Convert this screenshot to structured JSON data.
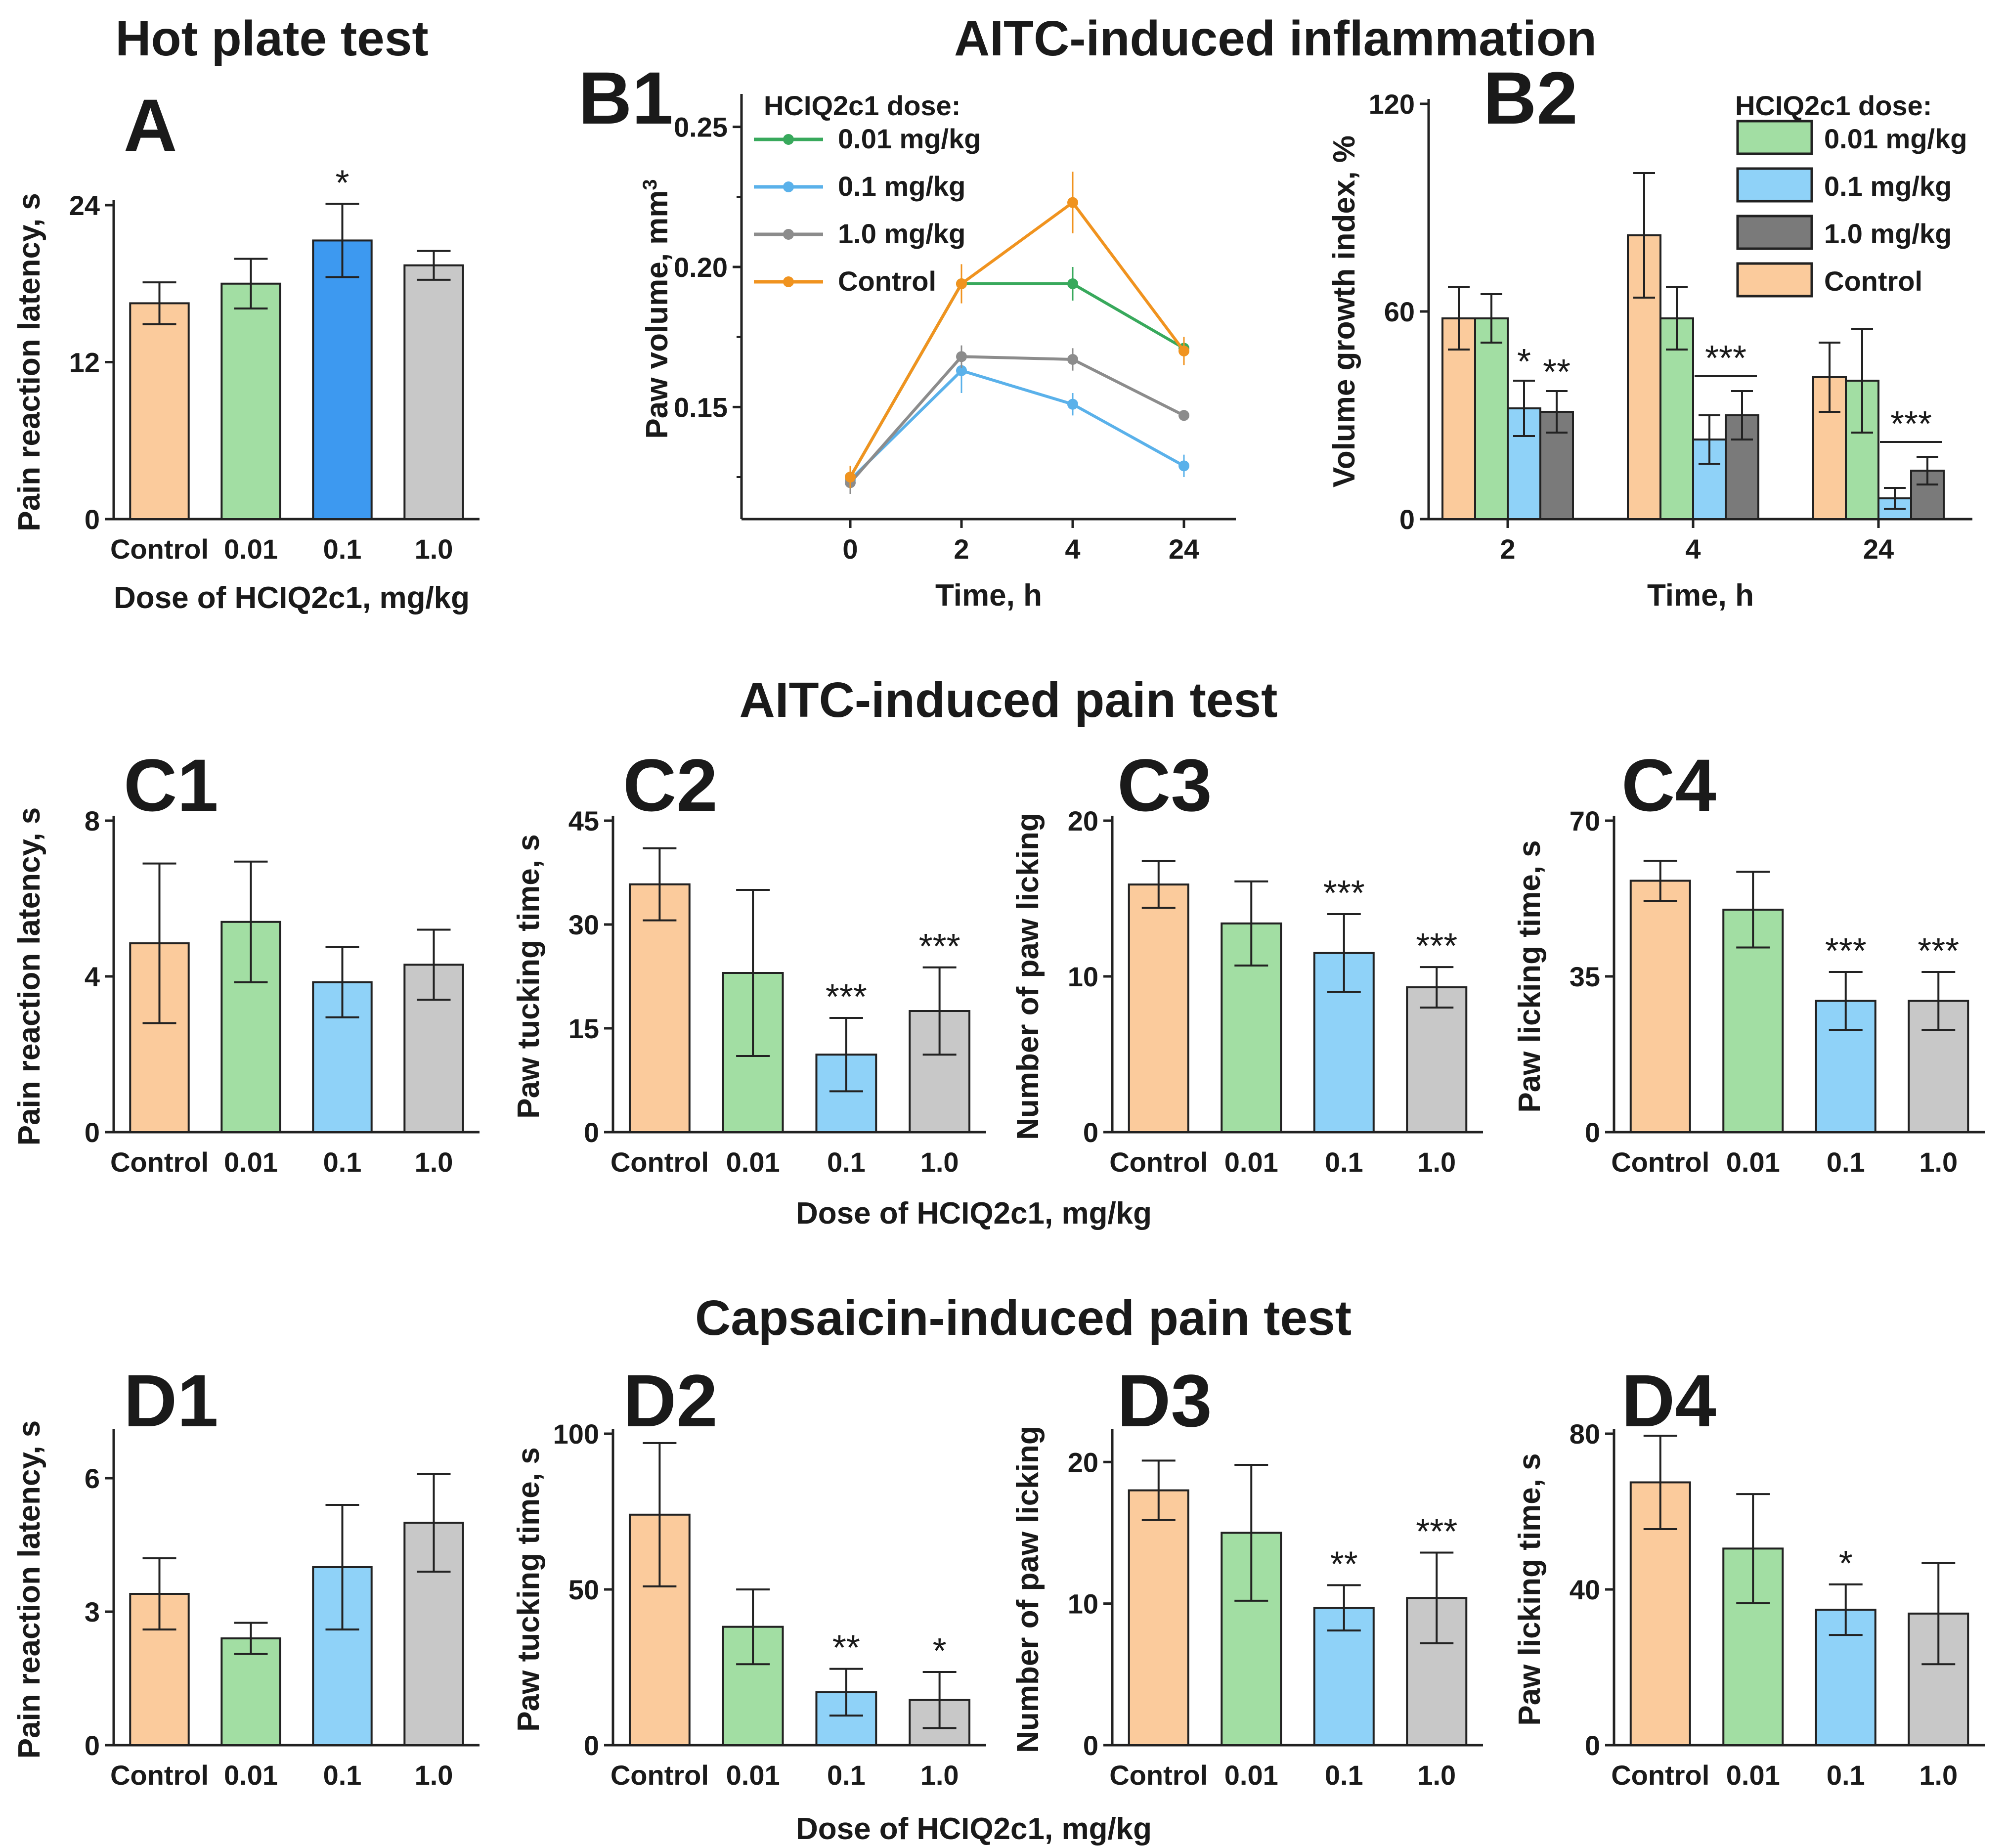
{
  "figure": {
    "section_titles": {
      "hot_plate": "Hot plate test",
      "aitc_inflammation": "AITC-induced inflammation",
      "aitc_pain": "AITC-induced pain test",
      "capsaicin_pain": "Capsaicin-induced pain test"
    },
    "shared_xlabel": "Dose of HCIQ2c1, mg/kg",
    "dose_categories": [
      "Control",
      "0.01",
      "0.1",
      "1.0"
    ],
    "dose_legend_title": "HCIQ2c1 dose:",
    "colors": {
      "Control": "#fbcb9c",
      "0.01": "#a2dea3",
      "0.1": "#8fd2f8",
      "0.1_highlight": "#3d99f0",
      "1.0": "#c8c8c8",
      "1.0_dark": "#7a7a7a",
      "line_control": "#f0931f",
      "line_001": "#38a95c",
      "line_01": "#5ab1ea",
      "line_10": "#8c8c8c"
    }
  },
  "chart_data": [
    {
      "id": "A",
      "label": "A",
      "type": "bar",
      "title": "Hot plate test",
      "xlabel": "Dose of HCIQ2c1, mg/kg",
      "ylabel": "Pain reaction latency, s",
      "ylim": [
        0,
        24
      ],
      "yticks": [
        0,
        12,
        24
      ],
      "categories": [
        "Control",
        "0.01",
        "0.1",
        "1.0"
      ],
      "values": [
        16.5,
        18.0,
        21.3,
        19.4
      ],
      "errors": [
        1.6,
        1.9,
        2.8,
        1.1
      ],
      "significance": [
        "",
        "",
        "*",
        ""
      ]
    },
    {
      "id": "B1",
      "label": "B1",
      "type": "line",
      "title": "AITC-induced inflammation",
      "xlabel": "Time, h",
      "ylabel": "Paw volume, mm",
      "ylabel_sup": "3",
      "x": [
        "0",
        "2",
        "4",
        "24"
      ],
      "ylim": [
        0.11,
        0.26
      ],
      "yticks": [
        "0.15",
        "0.20",
        "0.25"
      ],
      "legend_title": "HCIQ2c1 dose:",
      "series": [
        {
          "name": "0.01 mg/kg",
          "values": [
            0.125,
            0.194,
            0.194,
            0.171
          ],
          "errors": [
            0.004,
            0.006,
            0.006,
            0.004
          ]
        },
        {
          "name": "0.1 mg/kg",
          "values": [
            0.124,
            0.163,
            0.151,
            0.129
          ],
          "errors": [
            0.004,
            0.008,
            0.004,
            0.004
          ]
        },
        {
          "name": "1.0 mg/kg",
          "values": [
            0.123,
            0.168,
            0.167,
            0.147
          ],
          "errors": [
            0.004,
            0.004,
            0.004,
            0.002
          ]
        },
        {
          "name": "Control",
          "values": [
            0.125,
            0.194,
            0.223,
            0.17
          ],
          "errors": [
            0.004,
            0.007,
            0.011,
            0.005
          ]
        }
      ]
    },
    {
      "id": "B2",
      "label": "B2",
      "type": "bar",
      "xlabel": "Time, h",
      "ylabel": "Volume growth index, %",
      "ylim": [
        0,
        120
      ],
      "yticks": [
        0,
        60,
        120
      ],
      "categories": [
        "2",
        "4",
        "24"
      ],
      "legend_title": "HCIQ2c1 dose:",
      "series": [
        {
          "name": "Control",
          "values": [
            58,
            82,
            41
          ],
          "errors": [
            9,
            18,
            10
          ]
        },
        {
          "name": "0.01 mg/kg",
          "values": [
            58,
            58,
            40
          ],
          "errors": [
            7,
            9,
            15
          ]
        },
        {
          "name": "0.1 mg/kg",
          "values": [
            32,
            23,
            6
          ],
          "errors": [
            8,
            7,
            3
          ]
        },
        {
          "name": "1.0 mg/kg",
          "values": [
            31,
            30,
            14
          ],
          "errors": [
            6,
            7,
            4
          ]
        }
      ],
      "significance": [
        {
          "group": "2",
          "bar_index": 2,
          "text": "*"
        },
        {
          "group": "2",
          "bar_index": 3,
          "text": "**"
        },
        {
          "group": "4",
          "bar_index": 2,
          "to_bar_index": 3,
          "text": "***"
        },
        {
          "group": "24",
          "bar_index": 2,
          "to_bar_index": 3,
          "text": "***"
        }
      ]
    },
    {
      "id": "C1",
      "label": "C1",
      "type": "bar",
      "title": "AITC-induced pain test",
      "ylabel": "Pain reaction latency, s",
      "ylim": [
        0,
        8
      ],
      "yticks": [
        0,
        4,
        8
      ],
      "categories": [
        "Control",
        "0.01",
        "0.1",
        "1.0"
      ],
      "values": [
        4.85,
        5.4,
        3.85,
        4.3
      ],
      "errors": [
        2.05,
        1.55,
        0.9,
        0.9
      ],
      "significance": [
        "",
        "",
        "",
        ""
      ]
    },
    {
      "id": "C2",
      "label": "C2",
      "type": "bar",
      "ylabel": "Paw tucking time, s",
      "ylim": [
        0,
        45
      ],
      "yticks": [
        0,
        15,
        30,
        45
      ],
      "categories": [
        "Control",
        "0.01",
        "0.1",
        "1.0"
      ],
      "values": [
        35.8,
        23.0,
        11.2,
        17.5
      ],
      "errors": [
        5.2,
        12.0,
        5.3,
        6.3
      ],
      "significance": [
        "",
        "",
        "***",
        "***"
      ]
    },
    {
      "id": "C3",
      "label": "C3",
      "type": "bar",
      "ylabel": "Number of paw licking",
      "ylim": [
        0,
        20
      ],
      "yticks": [
        0,
        10,
        20
      ],
      "categories": [
        "Control",
        "0.01",
        "0.1",
        "1.0"
      ],
      "values": [
        15.9,
        13.4,
        11.5,
        9.3
      ],
      "errors": [
        1.5,
        2.7,
        2.5,
        1.3
      ],
      "significance": [
        "",
        "",
        "***",
        "***"
      ]
    },
    {
      "id": "C4",
      "label": "C4",
      "type": "bar",
      "ylabel": "Paw licking time, s",
      "ylim": [
        0,
        70
      ],
      "yticks": [
        0,
        35,
        70
      ],
      "categories": [
        "Control",
        "0.01",
        "0.1",
        "1.0"
      ],
      "values": [
        56.5,
        50.0,
        29.5,
        29.5
      ],
      "errors": [
        4.5,
        8.5,
        6.5,
        6.5
      ],
      "significance": [
        "",
        "",
        "***",
        "***"
      ]
    },
    {
      "id": "D1",
      "label": "D1",
      "type": "bar",
      "title": "Capsaicin-induced pain test",
      "ylabel": "Pain reaction latency, s",
      "ylim": [
        0,
        7
      ],
      "yticks": [
        0,
        3,
        6
      ],
      "categories": [
        "Control",
        "0.01",
        "0.1",
        "1.0"
      ],
      "values": [
        3.4,
        2.4,
        4.0,
        5.0
      ],
      "errors": [
        0.8,
        0.35,
        1.4,
        1.1
      ],
      "significance": [
        "",
        "",
        "",
        ""
      ]
    },
    {
      "id": "D2",
      "label": "D2",
      "type": "bar",
      "ylabel": "Paw tucking time, s",
      "ylim": [
        0,
        100
      ],
      "yticks": [
        0,
        50,
        100
      ],
      "categories": [
        "Control",
        "0.01",
        "0.1",
        "1.0"
      ],
      "values": [
        74,
        38,
        17,
        14.5
      ],
      "errors": [
        23,
        12,
        7.5,
        9
      ],
      "significance": [
        "",
        "",
        "**",
        "*"
      ]
    },
    {
      "id": "D3",
      "label": "D3",
      "type": "bar",
      "ylabel": "Number of paw licking",
      "ylim": [
        0,
        22
      ],
      "yticks": [
        0,
        10,
        20
      ],
      "categories": [
        "Control",
        "0.01",
        "0.1",
        "1.0"
      ],
      "values": [
        18.0,
        15.0,
        9.7,
        10.4
      ],
      "errors": [
        2.1,
        4.8,
        1.6,
        3.2
      ],
      "significance": [
        "",
        "",
        "**",
        "***"
      ]
    },
    {
      "id": "D4",
      "label": "D4",
      "type": "bar",
      "ylabel": "Paw licking time, s",
      "ylim": [
        0,
        80
      ],
      "yticks": [
        0,
        40,
        80
      ],
      "categories": [
        "Control",
        "0.01",
        "0.1",
        "1.0"
      ],
      "values": [
        67.5,
        50.5,
        34.8,
        33.8
      ],
      "errors": [
        12,
        14,
        6.5,
        13
      ],
      "significance": [
        "",
        "",
        "*",
        ""
      ]
    }
  ]
}
